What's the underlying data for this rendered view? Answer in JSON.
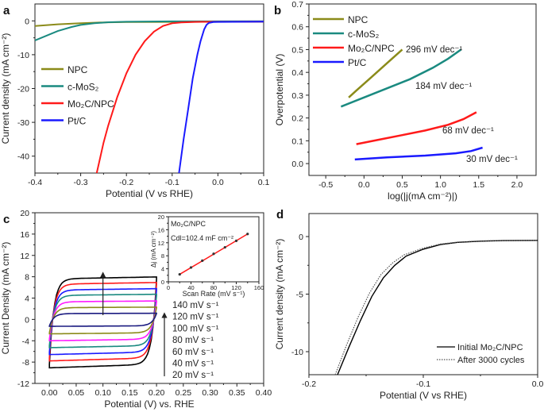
{
  "chart_data": [
    {
      "panel": "a",
      "type": "line",
      "xlabel": "Potential (V vs RHE)",
      "ylabel": "Current density (mA cm⁻²)",
      "xlim": [
        -0.4,
        0.1
      ],
      "ylim": [
        -45,
        5
      ],
      "xticks": [
        -0.4,
        -0.3,
        -0.2,
        -0.1,
        0.0,
        0.1
      ],
      "xtick_labels": [
        "-0.4",
        "-0.3",
        "-0.2",
        "-0.1",
        "0.0",
        "0.1"
      ],
      "yticks": [
        0,
        -10,
        -20,
        -30,
        -40
      ],
      "ytick_labels": [
        "0",
        "-10",
        "-20",
        "-30",
        "-40"
      ],
      "legend_placement": "left",
      "series": [
        {
          "name": "NPC",
          "color": "#8b8b1a",
          "x": [
            -0.4,
            -0.35,
            -0.3,
            -0.25,
            -0.2,
            -0.1,
            0.0,
            0.1
          ],
          "y": [
            -1.5,
            -1.0,
            -0.7,
            -0.45,
            -0.35,
            -0.3,
            -0.28,
            -0.25
          ]
        },
        {
          "name": "c-MoS₂",
          "color": "#1a8a80",
          "x": [
            -0.4,
            -0.37,
            -0.35,
            -0.32,
            -0.3,
            -0.27,
            -0.24,
            -0.2,
            -0.1,
            0.1
          ],
          "y": [
            -5.8,
            -4.1,
            -3.0,
            -1.8,
            -1.2,
            -0.7,
            -0.4,
            -0.25,
            -0.15,
            -0.1
          ]
        },
        {
          "name": "Mo₂C/NPC",
          "color": "#ff1a1a",
          "x": [
            -0.265,
            -0.25,
            -0.24,
            -0.22,
            -0.2,
            -0.18,
            -0.16,
            -0.14,
            -0.12,
            -0.1,
            -0.08,
            -0.05,
            0.1
          ],
          "y": [
            -45,
            -36,
            -31,
            -22.5,
            -15.5,
            -10,
            -6,
            -3.2,
            -1.5,
            -0.7,
            -0.45,
            -0.3,
            -0.2
          ]
        },
        {
          "name": "Pt/C",
          "color": "#1a1aff",
          "x": [
            -0.085,
            -0.075,
            -0.065,
            -0.055,
            -0.045,
            -0.038,
            -0.03,
            -0.025,
            -0.02,
            -0.01,
            0.0,
            0.1
          ],
          "y": [
            -45,
            -35,
            -26,
            -17,
            -10,
            -6,
            -2.5,
            -1.2,
            -0.6,
            -0.35,
            -0.3,
            -0.2
          ]
        }
      ]
    },
    {
      "panel": "b",
      "type": "line",
      "xlabel": "log(|j(mA cm⁻²)|)",
      "ylabel": "Overpotential (V)",
      "xlim": [
        -0.72,
        2.25
      ],
      "ylim": [
        -0.052,
        0.7
      ],
      "xticks": [
        -0.5,
        0.0,
        0.5,
        1.0,
        1.5,
        2.0
      ],
      "xtick_labels": [
        "-0.5",
        "0.0",
        "0.5",
        "1.0",
        "1.5",
        "2.0"
      ],
      "yticks": [
        0.0,
        0.1,
        0.2,
        0.3,
        0.4,
        0.5,
        0.6,
        0.7
      ],
      "ytick_labels": [
        "0.0",
        "0.1",
        "0.2",
        "0.3",
        "0.4",
        "0.5",
        "0.6",
        "0.7"
      ],
      "legend_placement": "top-left",
      "series": [
        {
          "name": "NPC",
          "color": "#8b8b1a",
          "slope_label": "296 mV dec⁻¹",
          "x": [
            -0.2,
            -0.1,
            0.1,
            0.3,
            0.5
          ],
          "y": [
            0.29,
            0.32,
            0.38,
            0.44,
            0.5
          ]
        },
        {
          "name": "c-MoS₂",
          "color": "#1a8a80",
          "slope_label": "184 mV dec⁻¹",
          "x": [
            -0.3,
            0.0,
            0.3,
            0.6,
            0.9,
            1.1,
            1.27
          ],
          "y": [
            0.25,
            0.29,
            0.33,
            0.37,
            0.42,
            0.46,
            0.5
          ]
        },
        {
          "name": "Mo₂C/NPC",
          "color": "#ff1a1a",
          "slope_label": "68 mV dec⁻¹",
          "x": [
            -0.1,
            0.2,
            0.5,
            0.8,
            1.1,
            1.3,
            1.47
          ],
          "y": [
            0.085,
            0.105,
            0.125,
            0.145,
            0.17,
            0.195,
            0.225
          ]
        },
        {
          "name": "Pt/C",
          "color": "#1a1aff",
          "slope_label": "30 mV dec⁻¹",
          "x": [
            -0.12,
            0.3,
            0.8,
            1.2,
            1.4,
            1.55
          ],
          "y": [
            0.018,
            0.027,
            0.035,
            0.045,
            0.055,
            0.07
          ]
        }
      ]
    },
    {
      "panel": "c",
      "type": "line",
      "xlabel": "Potential (V) vs. RHE",
      "ylabel": "Current Density (mA cm⁻²)",
      "xlim": [
        -0.027,
        0.4
      ],
      "ylim": [
        -12,
        20
      ],
      "xticks": [
        0.0,
        0.05,
        0.1,
        0.15,
        0.2,
        0.25,
        0.3,
        0.35,
        0.4
      ],
      "xtick_labels": [
        "0.00",
        "0.05",
        "0.10",
        "0.15",
        "0.20",
        "0.25",
        "0.30",
        "0.35",
        "0.40"
      ],
      "yticks": [
        -12,
        -8,
        -4,
        0,
        4,
        8,
        12,
        16,
        20
      ],
      "ytick_labels": [
        "-12",
        "-8",
        "-4",
        "0",
        "4",
        "8",
        "12",
        "16",
        "20"
      ],
      "potential_window": [
        0.0,
        0.2
      ],
      "series": [
        {
          "name": "140 mV s⁻¹",
          "color": "#000000",
          "upper": 7.6,
          "lower": -8.4
        },
        {
          "name": "120 mV s⁻¹",
          "color": "#ff1a1a",
          "upper": 6.6,
          "lower": -7.2
        },
        {
          "name": "100 mV s⁻¹",
          "color": "#1a1aff",
          "upper": 5.5,
          "lower": -6.1
        },
        {
          "name": "80 mV s⁻¹",
          "color": "#1a8a80",
          "upper": 4.5,
          "lower": -4.9
        },
        {
          "name": "60 mV s⁻¹",
          "color": "#ff1aff",
          "upper": 3.3,
          "lower": -3.7
        },
        {
          "name": "40 mV s⁻¹",
          "color": "#8b8b1a",
          "upper": 2.2,
          "lower": -2.5
        },
        {
          "name": "20 mV s⁻¹",
          "color": "#1a1a80",
          "upper": 1.1,
          "lower": -1.2
        }
      ],
      "inset": {
        "type": "scatter",
        "title": "Mo₂C/NPC",
        "annotation": "Cdl=102.4 mF cm⁻²",
        "xlabel": "Scan Rate (mV s⁻¹)",
        "ylabel": "Δj (mA cm⁻²)",
        "xlim": [
          0,
          160
        ],
        "ylim": [
          0,
          20
        ],
        "xticks": [
          0,
          40,
          80,
          120,
          160
        ],
        "xtick_labels": [
          "0",
          "40",
          "80",
          "120",
          "160"
        ],
        "yticks": [
          0,
          4,
          8,
          12,
          16,
          20
        ],
        "ytick_labels": [
          "0",
          "4",
          "8",
          "12",
          "16",
          "20"
        ],
        "fit_color": "#ff1a1a",
        "x": [
          20,
          40,
          60,
          80,
          100,
          120,
          140
        ],
        "y": [
          2.3,
          4.4,
          6.5,
          8.6,
          10.6,
          12.6,
          14.7
        ]
      }
    },
    {
      "panel": "d",
      "type": "line",
      "xlabel": "Potential (V vs RHE)",
      "ylabel": "Current density (mA cm⁻²)",
      "xlim": [
        -0.2,
        0.0
      ],
      "ylim": [
        -12,
        2
      ],
      "xticks": [
        -0.2,
        -0.1,
        0.0
      ],
      "xtick_labels": [
        "-0.2",
        "-0.1",
        "0.0"
      ],
      "yticks": [
        0,
        -5,
        -10
      ],
      "ytick_labels": [
        "0",
        "-5",
        "-10"
      ],
      "legend_placement": "bottom-right",
      "series": [
        {
          "name": "Initial Mo₂C/NPC",
          "style": "solid",
          "color": "#000000",
          "x": [
            -0.175,
            -0.165,
            -0.155,
            -0.145,
            -0.135,
            -0.125,
            -0.115,
            -0.1,
            -0.085,
            -0.07,
            -0.05,
            -0.03,
            0.0
          ],
          "y": [
            -12,
            -9.6,
            -7.3,
            -5.2,
            -3.6,
            -2.5,
            -1.7,
            -1.1,
            -0.7,
            -0.5,
            -0.4,
            -0.35,
            -0.33
          ]
        },
        {
          "name": "After 3000 cycles",
          "style": "dotted",
          "color": "#555555",
          "x": [
            -0.177,
            -0.167,
            -0.157,
            -0.147,
            -0.137,
            -0.127,
            -0.117,
            -0.1,
            -0.085,
            -0.07,
            -0.05,
            -0.03,
            0.0
          ],
          "y": [
            -12,
            -9.4,
            -7.0,
            -4.9,
            -3.3,
            -2.3,
            -1.6,
            -1.0,
            -0.65,
            -0.48,
            -0.38,
            -0.34,
            -0.32
          ]
        }
      ]
    }
  ],
  "panel_letters": [
    "a",
    "b",
    "c",
    "d"
  ]
}
